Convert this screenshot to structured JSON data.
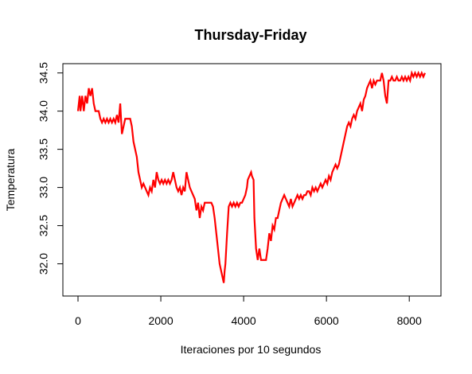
{
  "chart_data": {
    "type": "line",
    "title": "Thursday-Friday",
    "xlabel": "Iteraciones por 10 segundos",
    "ylabel": "Temperatura",
    "xlim": [
      0,
      8400
    ],
    "ylim": [
      31.7,
      34.5
    ],
    "x_ticks": [
      0,
      2000,
      4000,
      6000,
      8000
    ],
    "x_tick_labels": [
      "0",
      "2000",
      "4000",
      "6000",
      "8000"
    ],
    "y_ticks": [
      32.0,
      32.5,
      33.0,
      33.5,
      34.0,
      34.5
    ],
    "y_tick_labels": [
      "32.0",
      "32.5",
      "33.0",
      "33.5",
      "34.0",
      "34.5"
    ],
    "grid": false,
    "series": [
      {
        "color": "#ff0000",
        "x": [
          0,
          40,
          60,
          100,
          140,
          180,
          220,
          260,
          300,
          340,
          380,
          420,
          460,
          500,
          540,
          580,
          620,
          660,
          700,
          740,
          780,
          820,
          860,
          900,
          940,
          980,
          1020,
          1060,
          1100,
          1140,
          1180,
          1220,
          1260,
          1300,
          1340,
          1380,
          1420,
          1460,
          1500,
          1540,
          1580,
          1620,
          1660,
          1700,
          1740,
          1780,
          1820,
          1860,
          1900,
          1940,
          1980,
          2020,
          2060,
          2100,
          2140,
          2180,
          2220,
          2260,
          2300,
          2340,
          2380,
          2420,
          2460,
          2500,
          2540,
          2580,
          2620,
          2660,
          2700,
          2740,
          2780,
          2820,
          2860,
          2900,
          2940,
          2980,
          3020,
          3060,
          3100,
          3140,
          3180,
          3220,
          3260,
          3300,
          3340,
          3380,
          3420,
          3460,
          3500,
          3520,
          3540,
          3560,
          3600,
          3640,
          3680,
          3720,
          3760,
          3800,
          3840,
          3880,
          3920,
          3960,
          4000,
          4040,
          4080,
          4100,
          4140,
          4180,
          4200,
          4240,
          4260,
          4300,
          4340,
          4380,
          4420,
          4460,
          4500,
          4540,
          4580,
          4620,
          4660,
          4700,
          4740,
          4780,
          4820,
          4860,
          4900,
          4940,
          4980,
          5020,
          5060,
          5100,
          5140,
          5180,
          5220,
          5260,
          5300,
          5340,
          5380,
          5420,
          5460,
          5500,
          5540,
          5580,
          5620,
          5660,
          5700,
          5740,
          5780,
          5820,
          5860,
          5900,
          5940,
          5980,
          6020,
          6060,
          6100,
          6140,
          6180,
          6220,
          6260,
          6300,
          6340,
          6380,
          6420,
          6460,
          6500,
          6540,
          6580,
          6620,
          6660,
          6700,
          6740,
          6780,
          6820,
          6860,
          6900,
          6940,
          6980,
          7020,
          7060,
          7100,
          7140,
          7180,
          7220,
          7260,
          7300,
          7340,
          7380,
          7420,
          7460,
          7500,
          7540,
          7580,
          7620,
          7660,
          7700,
          7740,
          7780,
          7820,
          7860,
          7900,
          7940,
          7980,
          8020,
          8060,
          8100,
          8140,
          8180,
          8220,
          8260,
          8300,
          8340,
          8380
        ],
        "y": [
          34.0,
          34.2,
          34.0,
          34.2,
          34.0,
          34.2,
          34.1,
          34.3,
          34.2,
          34.3,
          34.1,
          34.0,
          34.0,
          34.0,
          33.9,
          33.85,
          33.9,
          33.85,
          33.9,
          33.85,
          33.9,
          33.85,
          33.9,
          33.85,
          33.95,
          33.85,
          34.1,
          33.7,
          33.8,
          33.9,
          33.9,
          33.9,
          33.9,
          33.8,
          33.6,
          33.5,
          33.4,
          33.2,
          33.1,
          33.0,
          33.05,
          33.0,
          32.95,
          32.9,
          33.0,
          32.95,
          33.1,
          33.0,
          33.2,
          33.1,
          33.05,
          33.1,
          33.05,
          33.1,
          33.05,
          33.1,
          33.05,
          33.1,
          33.2,
          33.1,
          33.0,
          32.95,
          33.0,
          32.9,
          33.0,
          32.95,
          33.2,
          33.1,
          33.0,
          32.95,
          32.9,
          32.85,
          32.7,
          32.8,
          32.6,
          32.75,
          32.7,
          32.8,
          32.8,
          32.8,
          32.8,
          32.8,
          32.75,
          32.6,
          32.4,
          32.2,
          32.0,
          31.9,
          31.8,
          31.75,
          31.9,
          32.0,
          32.4,
          32.75,
          32.8,
          32.75,
          32.8,
          32.75,
          32.8,
          32.75,
          32.8,
          32.8,
          32.85,
          32.9,
          33.0,
          33.1,
          33.15,
          33.2,
          33.15,
          33.1,
          32.6,
          32.2,
          32.05,
          32.2,
          32.05,
          32.05,
          32.05,
          32.05,
          32.2,
          32.4,
          32.3,
          32.5,
          32.45,
          32.6,
          32.6,
          32.7,
          32.8,
          32.85,
          32.9,
          32.85,
          32.8,
          32.75,
          32.85,
          32.75,
          32.8,
          32.85,
          32.9,
          32.85,
          32.9,
          32.85,
          32.9,
          32.9,
          32.95,
          32.95,
          32.9,
          33.0,
          32.95,
          33.0,
          32.95,
          33.0,
          33.05,
          33.0,
          33.05,
          33.1,
          33.05,
          33.15,
          33.1,
          33.2,
          33.25,
          33.3,
          33.25,
          33.3,
          33.4,
          33.5,
          33.6,
          33.7,
          33.8,
          33.85,
          33.8,
          33.9,
          33.95,
          33.9,
          34.0,
          34.05,
          34.1,
          34.0,
          34.15,
          34.2,
          34.3,
          34.35,
          34.4,
          34.3,
          34.4,
          34.35,
          34.4,
          34.4,
          34.4,
          34.5,
          34.4,
          34.2,
          34.1,
          34.4,
          34.4,
          34.45,
          34.4,
          34.4,
          34.45,
          34.4,
          34.4,
          34.45,
          34.4,
          34.45,
          34.4,
          34.45,
          34.4,
          34.5,
          34.45,
          34.5,
          34.45,
          34.5,
          34.45,
          34.5,
          34.45,
          34.5
        ]
      }
    ]
  }
}
